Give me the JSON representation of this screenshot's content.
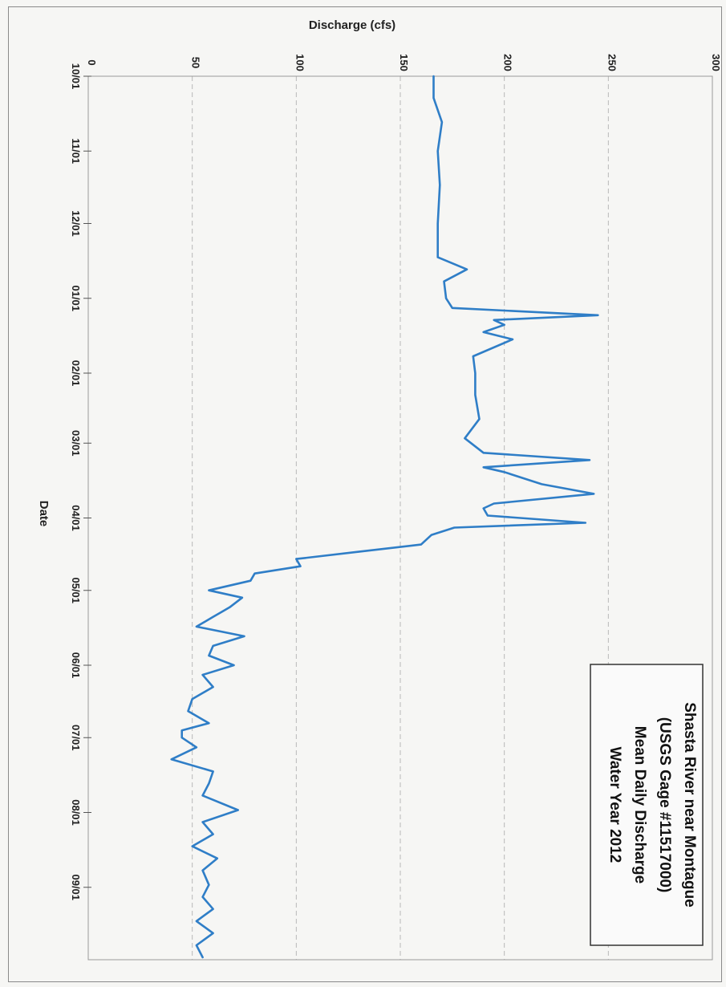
{
  "chart_data": {
    "type": "line",
    "orientation": "rotated-90-clockwise",
    "title": "",
    "xlabel": "Date",
    "ylabel": "Discharge (cfs)",
    "ylim": [
      0,
      300
    ],
    "y_ticks": [
      0,
      50,
      100,
      150,
      200,
      250,
      300
    ],
    "x_tick_labels": [
      "10/01",
      "11/01",
      "12/01",
      "01/01",
      "02/01",
      "03/01",
      "04/01",
      "05/01",
      "06/01",
      "07/01",
      "08/01",
      "09/01"
    ],
    "grid": true,
    "legend": "none",
    "annotation_box": {
      "lines": [
        "Shasta River near Montague",
        "(USGS Gage #11517000)",
        "Mean Daily Discharge",
        "Water Year 2012"
      ],
      "placement": "bottom-right of rotated page"
    },
    "series": [
      {
        "name": "",
        "color": "#2f7ec7",
        "x": [
          "2011-10-01",
          "2011-10-10",
          "2011-10-20",
          "2011-11-01",
          "2011-11-15",
          "2011-12-01",
          "2011-12-15",
          "2011-12-20",
          "2011-12-25",
          "2012-01-01",
          "2012-01-05",
          "2012-01-08",
          "2012-01-10",
          "2012-01-12",
          "2012-01-15",
          "2012-01-18",
          "2012-01-25",
          "2012-02-01",
          "2012-02-10",
          "2012-02-20",
          "2012-02-28",
          "2012-03-05",
          "2012-03-08",
          "2012-03-11",
          "2012-03-13",
          "2012-03-18",
          "2012-03-22",
          "2012-03-26",
          "2012-03-28",
          "2012-03-31",
          "2012-04-03",
          "2012-04-05",
          "2012-04-08",
          "2012-04-12",
          "2012-04-15",
          "2012-04-18",
          "2012-04-21",
          "2012-04-24",
          "2012-04-27",
          "2012-05-01",
          "2012-05-04",
          "2012-05-08",
          "2012-05-12",
          "2012-05-16",
          "2012-05-20",
          "2012-05-24",
          "2012-05-28",
          "2012-06-01",
          "2012-06-05",
          "2012-06-10",
          "2012-06-15",
          "2012-06-20",
          "2012-06-25",
          "2012-06-28",
          "2012-07-01",
          "2012-07-05",
          "2012-07-10",
          "2012-07-15",
          "2012-07-20",
          "2012-07-25",
          "2012-07-31",
          "2012-08-05",
          "2012-08-10",
          "2012-08-15",
          "2012-08-20",
          "2012-08-25",
          "2012-08-31",
          "2012-09-05",
          "2012-09-10",
          "2012-09-15",
          "2012-09-20",
          "2012-09-25",
          "2012-09-30"
        ],
        "values": [
          166,
          166,
          170,
          168,
          169,
          168,
          168,
          182,
          171,
          172,
          175,
          245,
          195,
          200,
          190,
          204,
          185,
          186,
          186,
          188,
          181,
          190,
          241,
          190,
          200,
          218,
          243,
          195,
          190,
          192,
          239,
          176,
          165,
          160,
          130,
          100,
          102,
          80,
          78,
          58,
          74,
          68,
          60,
          52,
          75,
          60,
          58,
          70,
          55,
          60,
          50,
          48,
          58,
          45,
          45,
          52,
          40,
          60,
          58,
          55,
          72,
          55,
          60,
          50,
          62,
          55,
          58,
          55,
          60,
          52,
          60,
          52,
          55
        ]
      }
    ]
  }
}
